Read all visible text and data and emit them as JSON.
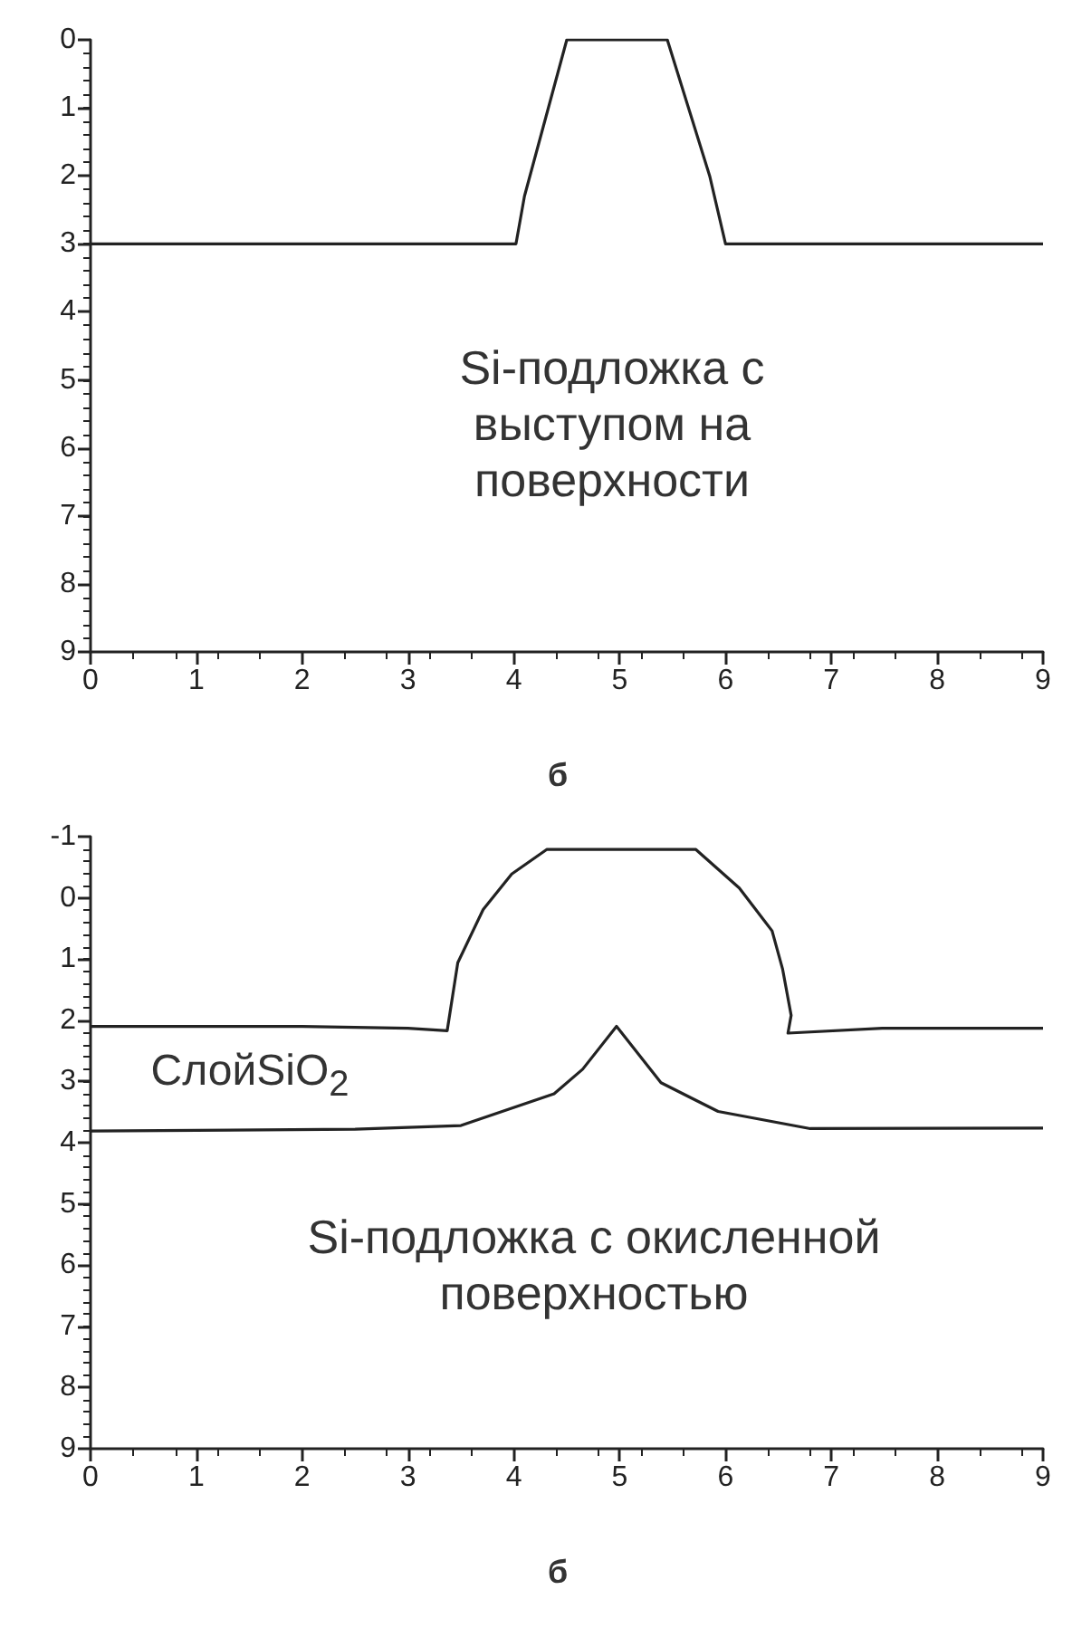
{
  "chart_data": [
    {
      "type": "line",
      "series": [
        {
          "color": "#222222",
          "x": [
            0,
            4.02,
            4.1,
            4.5,
            5.45,
            5.85,
            6,
            9
          ],
          "values": [
            3,
            3,
            2.3,
            0,
            0,
            2,
            3,
            3
          ]
        }
      ],
      "xlim": [
        0,
        9
      ],
      "ylim": [
        9,
        0
      ],
      "xticks": [
        0,
        1,
        2,
        3,
        4,
        5,
        6,
        7,
        8,
        9
      ],
      "yticks": [
        0,
        1,
        2,
        3,
        4,
        5,
        6,
        7,
        8,
        9
      ],
      "grid": false,
      "marker": "none",
      "line_style": "solid",
      "annotations": [
        "Si-подложка с\nвыступом на\nповерхности",
        "б"
      ]
    },
    {
      "type": "line",
      "series": [
        {
          "color": "#222222",
          "x": [
            0,
            2,
            3,
            3.37,
            3.47,
            3.71,
            3.98,
            4.31,
            5.72,
            6.13,
            6.44,
            6.54,
            6.62,
            6.59,
            7.48,
            9
          ],
          "values": [
            2.1,
            2.1,
            2.13,
            2.17,
            1.06,
            0.19,
            -0.39,
            -0.79,
            -0.79,
            -0.16,
            0.54,
            1.17,
            1.92,
            2.21,
            2.13,
            2.13
          ]
        },
        {
          "color": "#222222",
          "x": [
            0,
            2.5,
            3.5,
            4.38,
            4.65,
            4.97,
            5.39,
            5.93,
            6.8,
            9
          ],
          "values": [
            3.81,
            3.78,
            3.72,
            3.2,
            2.8,
            2.1,
            3.02,
            3.49,
            3.77,
            3.76
          ]
        }
      ],
      "xlim": [
        0,
        9
      ],
      "ylim": [
        9,
        -1
      ],
      "xticks": [
        0,
        1,
        2,
        3,
        4,
        5,
        6,
        7,
        8,
        9
      ],
      "yticks": [
        -1,
        0,
        1,
        2,
        3,
        4,
        5,
        6,
        7,
        8,
        9
      ],
      "grid": false,
      "marker": "none",
      "line_style": "solid",
      "annotations": [
        "СлойSiO$_{2}$",
        "Si-подложка с окисленной\nповерхностью",
        "б"
      ]
    }
  ]
}
